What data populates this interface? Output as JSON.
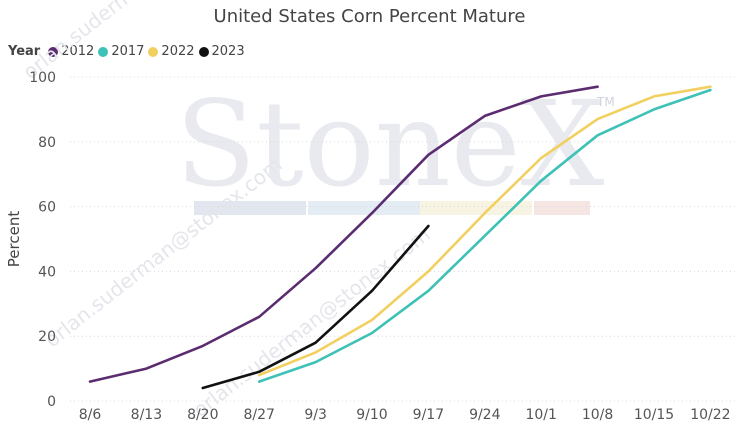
{
  "chart_data": {
    "type": "line",
    "title": "United States Corn Percent Mature",
    "xlabel": "",
    "ylabel": "Percent",
    "legend_title": "Year",
    "legend_position": "top-left",
    "ylim": [
      0,
      100
    ],
    "yticks": [
      0,
      20,
      40,
      60,
      80,
      100
    ],
    "grid": "horizontal dotted",
    "categories": [
      "8/6",
      "8/13",
      "8/20",
      "8/27",
      "9/3",
      "9/10",
      "9/17",
      "9/24",
      "10/1",
      "10/8",
      "10/15",
      "10/22"
    ],
    "series": [
      {
        "name": "2012",
        "color": "#5b2c6f",
        "values": [
          6,
          10,
          17,
          26,
          41,
          58,
          76,
          88,
          94,
          97,
          null,
          null
        ]
      },
      {
        "name": "2017",
        "color": "#3ec1b6",
        "values": [
          null,
          null,
          null,
          6,
          12,
          21,
          34,
          51,
          68,
          82,
          90,
          96
        ]
      },
      {
        "name": "2022",
        "color": "#f2d060",
        "values": [
          null,
          null,
          null,
          8,
          15,
          25,
          40,
          58,
          75,
          87,
          94,
          97
        ]
      },
      {
        "name": "2023",
        "color": "#111111",
        "values": [
          null,
          null,
          4,
          9,
          18,
          34,
          54,
          null,
          null,
          null,
          null,
          null
        ]
      }
    ]
  },
  "watermark": {
    "brand": "StoneX",
    "trademark": "TM",
    "diagonal_text": "orlan.suderman@stonex.com"
  }
}
